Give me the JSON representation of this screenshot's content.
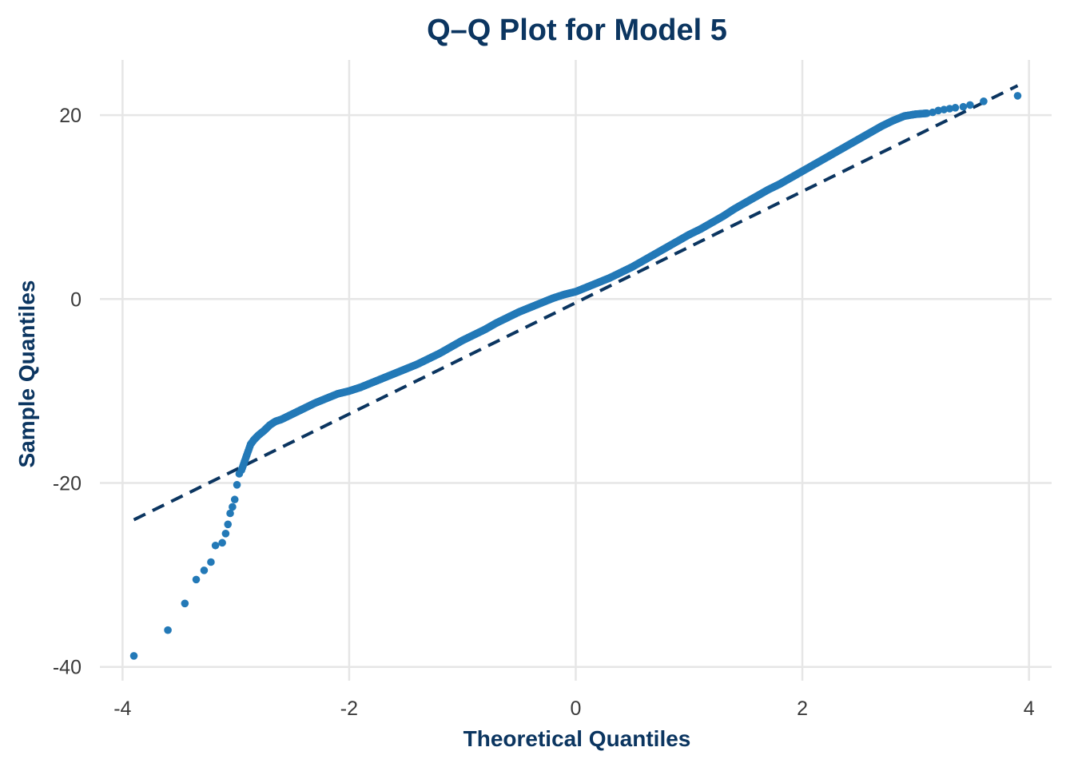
{
  "colors": {
    "title": "#0b3560",
    "points": "#2379b7",
    "reference_line": "#0b3560",
    "grid": "#e6e6e6",
    "tick_text": "#3a3a3a",
    "background": "#ffffff"
  },
  "chart_data": {
    "type": "scatter",
    "title": "Q–Q Plot for Model 5",
    "xlabel": "Theoretical Quantiles",
    "ylabel": "Sample Quantiles",
    "xlim": [
      -4.2,
      4.2
    ],
    "ylim": [
      -41.5,
      26
    ],
    "x_ticks": [
      -4,
      -2,
      0,
      2,
      4
    ],
    "x_tick_labels": [
      "-4",
      "-2",
      "0",
      "2",
      "4"
    ],
    "y_ticks": [
      -40,
      -20,
      0,
      20
    ],
    "y_tick_labels": [
      "-40",
      "-20",
      "0",
      "20"
    ],
    "grid": true,
    "legend": "none",
    "reference_line": {
      "style": "dashed",
      "x": [
        -3.9,
        3.9
      ],
      "y": [
        -24,
        23.2
      ]
    },
    "series": [
      {
        "points": {
          "x": [
            -3.9,
            -3.6,
            -3.45,
            -3.35,
            -3.28,
            -3.22,
            -3.18,
            -3.12,
            -3.09,
            -3.07,
            -3.05,
            -3.03,
            -3.01,
            -2.99,
            -2.97,
            -2.95,
            -2.93,
            -2.91,
            -2.89,
            -2.87,
            -2.84,
            -2.8,
            -2.75,
            -2.7,
            -2.65,
            -2.6,
            -2.5,
            -2.4,
            -2.3,
            -2.2,
            -2.1,
            -2.0,
            -1.9,
            -1.8,
            -1.7,
            -1.6,
            -1.5,
            -1.4,
            -1.3,
            -1.2,
            -1.1,
            -1.0,
            -0.9,
            -0.8,
            -0.7,
            -0.6,
            -0.5,
            -0.4,
            -0.3,
            -0.2,
            -0.1,
            0.0,
            0.1,
            0.2,
            0.3,
            0.4,
            0.5,
            0.6,
            0.7,
            0.8,
            0.9,
            1.0,
            1.1,
            1.2,
            1.3,
            1.4,
            1.5,
            1.6,
            1.7,
            1.8,
            1.9,
            2.0,
            2.1,
            2.2,
            2.3,
            2.4,
            2.5,
            2.6,
            2.7,
            2.8,
            2.9,
            3.0,
            3.1,
            3.15,
            3.2,
            3.25,
            3.3,
            3.35,
            3.42,
            3.48,
            3.6,
            3.9
          ],
          "y": [
            -38.8,
            -36.0,
            -33.1,
            -30.5,
            -29.5,
            -28.6,
            -26.8,
            -26.5,
            -25.5,
            -24.5,
            -23.3,
            -22.6,
            -21.8,
            -20.2,
            -19.0,
            -18.6,
            -17.9,
            -17.2,
            -16.5,
            -15.8,
            -15.3,
            -14.8,
            -14.3,
            -13.7,
            -13.3,
            -13.1,
            -12.5,
            -11.9,
            -11.3,
            -10.8,
            -10.3,
            -10.0,
            -9.6,
            -9.1,
            -8.6,
            -8.1,
            -7.6,
            -7.1,
            -6.5,
            -5.9,
            -5.2,
            -4.5,
            -3.9,
            -3.3,
            -2.6,
            -2.0,
            -1.4,
            -0.9,
            -0.4,
            0.1,
            0.5,
            0.8,
            1.3,
            1.8,
            2.3,
            2.9,
            3.5,
            4.2,
            4.9,
            5.6,
            6.3,
            7.0,
            7.6,
            8.3,
            9.0,
            9.8,
            10.5,
            11.2,
            11.9,
            12.5,
            13.2,
            13.9,
            14.6,
            15.3,
            16.0,
            16.7,
            17.4,
            18.1,
            18.8,
            19.4,
            19.9,
            20.1,
            20.2,
            20.3,
            20.5,
            20.6,
            20.7,
            20.8,
            20.9,
            21.1,
            21.5,
            22.1
          ]
        }
      }
    ]
  }
}
